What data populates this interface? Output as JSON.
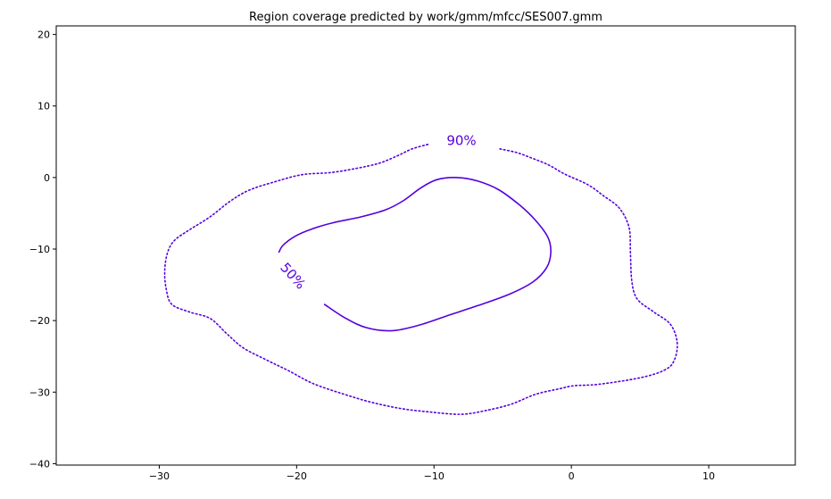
{
  "chart_data": {
    "type": "contour",
    "title": "Region coverage predicted by work/gmm/mfcc/SES007.gmm",
    "xlabel": "",
    "ylabel": "",
    "xlim": [
      -37.5,
      16.3
    ],
    "ylim": [
      -40.2,
      21.2
    ],
    "xticks": [
      -30,
      -20,
      -10,
      0,
      10
    ],
    "xtick_labels": [
      "−30",
      "−20",
      "−10",
      "0",
      "10"
    ],
    "yticks": [
      20,
      10,
      0,
      -10,
      -20,
      -30,
      -40
    ],
    "ytick_labels": [
      "20",
      "10",
      "0",
      "−10",
      "−20",
      "−30",
      "−40"
    ],
    "grid": false,
    "color": "#5500dd",
    "series": [
      {
        "label": "50%",
        "style": "solid",
        "label_at": [
          -20.3,
          -13.8
        ],
        "label_rotation": 48,
        "points": [
          [
            -21.3,
            -10.5
          ],
          [
            -21.0,
            -9.5
          ],
          [
            -20.1,
            -8.2
          ],
          [
            -18.9,
            -7.2
          ],
          [
            -17.3,
            -6.3
          ],
          [
            -15.3,
            -5.5
          ],
          [
            -13.5,
            -4.5
          ],
          [
            -12.2,
            -3.2
          ],
          [
            -11.0,
            -1.5
          ],
          [
            -9.8,
            -0.3
          ],
          [
            -8.3,
            0.0
          ],
          [
            -6.8,
            -0.5
          ],
          [
            -5.3,
            -1.7
          ],
          [
            -3.8,
            -3.8
          ],
          [
            -2.6,
            -6.0
          ],
          [
            -1.7,
            -8.4
          ],
          [
            -1.5,
            -10.5
          ],
          [
            -1.8,
            -12.6
          ],
          [
            -2.8,
            -14.6
          ],
          [
            -4.5,
            -16.3
          ],
          [
            -6.8,
            -17.9
          ],
          [
            -9.0,
            -19.3
          ],
          [
            -11.0,
            -20.6
          ],
          [
            -13.0,
            -21.4
          ],
          [
            -14.9,
            -21.0
          ],
          [
            -16.5,
            -19.6
          ],
          [
            -18.0,
            -17.7
          ]
        ]
      },
      {
        "label": "90%",
        "style": "dotted",
        "label_at": [
          -8.0,
          5.1
        ],
        "label_rotation": 0,
        "points": [
          [
            -5.2,
            4.0
          ],
          [
            -4.0,
            3.5
          ],
          [
            -3.0,
            2.8
          ],
          [
            -1.7,
            1.8
          ],
          [
            -0.5,
            0.5
          ],
          [
            1.2,
            -1.0
          ],
          [
            2.3,
            -2.5
          ],
          [
            3.5,
            -4.3
          ],
          [
            4.2,
            -7.0
          ],
          [
            4.3,
            -10.5
          ],
          [
            4.4,
            -14.5
          ],
          [
            4.8,
            -17.0
          ],
          [
            6.0,
            -18.8
          ],
          [
            7.2,
            -20.5
          ],
          [
            7.7,
            -23.0
          ],
          [
            7.5,
            -25.5
          ],
          [
            6.8,
            -26.9
          ],
          [
            5.0,
            -28.0
          ],
          [
            2.0,
            -28.9
          ],
          [
            0.2,
            -29.1
          ],
          [
            -0.8,
            -29.5
          ],
          [
            -2.6,
            -30.3
          ],
          [
            -4.4,
            -31.7
          ],
          [
            -6.3,
            -32.6
          ],
          [
            -8.0,
            -33.1
          ],
          [
            -10.2,
            -32.8
          ],
          [
            -12.4,
            -32.3
          ],
          [
            -14.6,
            -31.4
          ],
          [
            -16.7,
            -30.2
          ],
          [
            -18.8,
            -28.8
          ],
          [
            -20.6,
            -27.0
          ],
          [
            -22.2,
            -25.5
          ],
          [
            -23.9,
            -23.8
          ],
          [
            -25.1,
            -21.8
          ],
          [
            -26.3,
            -19.7
          ],
          [
            -27.8,
            -18.8
          ],
          [
            -29.1,
            -17.7
          ],
          [
            -29.5,
            -15.5
          ],
          [
            -29.6,
            -13.0
          ],
          [
            -29.4,
            -10.5
          ],
          [
            -28.9,
            -8.8
          ],
          [
            -27.8,
            -7.3
          ],
          [
            -26.3,
            -5.5
          ],
          [
            -24.9,
            -3.4
          ],
          [
            -23.5,
            -1.8
          ],
          [
            -21.6,
            -0.6
          ],
          [
            -19.6,
            0.4
          ],
          [
            -17.5,
            0.7
          ],
          [
            -15.6,
            1.3
          ],
          [
            -14.0,
            2.0
          ],
          [
            -12.7,
            3.0
          ],
          [
            -11.6,
            4.0
          ],
          [
            -10.3,
            4.7
          ]
        ]
      }
    ]
  }
}
